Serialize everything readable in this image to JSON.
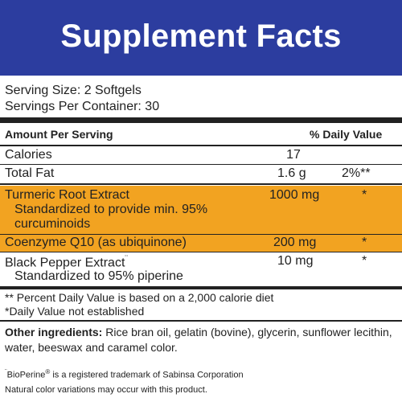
{
  "title": "Supplement Facts",
  "serving_size": "Serving Size: 2 Softgels",
  "servings_per_container": "Servings Per Container: 30",
  "header_row": {
    "amount": "Amount Per Serving",
    "dv": "% Daily Value"
  },
  "rows": [
    {
      "name": "Calories",
      "amount": "17",
      "dv": ""
    },
    {
      "name": "Total Fat",
      "amount": "1.6 g",
      "dv": "2%**"
    },
    {
      "name": "Turmeric Root Extract",
      "sub1": "Standardized to provide min. 95%",
      "sub2": "curcuminoids",
      "amount": "1000 mg",
      "dv": "*"
    },
    {
      "name": "Coenzyme Q10 (as ubiquinone)",
      "amount": "200 mg",
      "dv": "*"
    },
    {
      "name": "Black Pepper Extract",
      "mark": "¨",
      "sub1": "Standardized to 95% piperine",
      "amount": "10 mg",
      "dv": "*"
    }
  ],
  "footnote1": "** Percent Daily Value is based on a 2,000 calorie diet",
  "footnote2": "*Daily Value not established",
  "other_label": "Other ingredients:",
  "other_line1": " Rice bran oil, gelatin (bovine), glycerin, sunflower lecithin,",
  "other_line2": "water, beeswax and caramel color.",
  "trademark_mark": "¨",
  "trademark_brand": "BioPerine",
  "trademark_reg": "®",
  "trademark_rest": " is a registered trademark of Sabinsa Corporation",
  "natural_note": "Natural color variations may occur with this product.",
  "colors": {
    "header_bg": "#2c3d9f",
    "highlight": "#f2a321"
  }
}
